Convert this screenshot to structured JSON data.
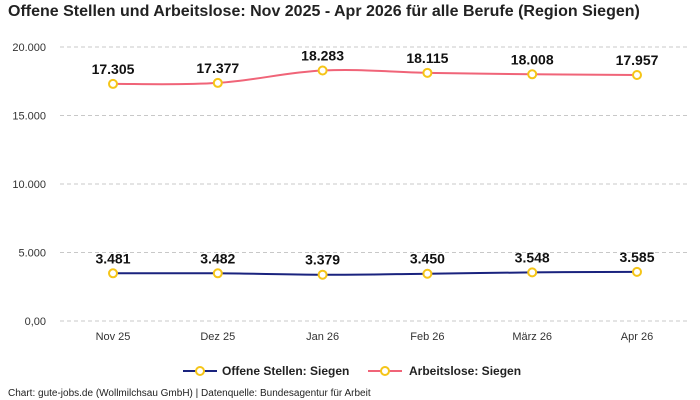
{
  "chart_data": {
    "type": "line",
    "title": "Offene Stellen und Arbeitslose: Nov 2025 - Apr 2026 für alle Berufe (Region Siegen)",
    "categories": [
      "Nov 25",
      "Dez 25",
      "Jan 26",
      "Feb 26",
      "März 26",
      "Apr 26"
    ],
    "series": [
      {
        "name": "Offene Stellen: Siegen",
        "values": [
          3481,
          3482,
          3379,
          3450,
          3548,
          3585
        ],
        "labels": [
          "3.481",
          "3.482",
          "3.379",
          "3.450",
          "3.548",
          "3.585"
        ],
        "color": "#1a237e"
      },
      {
        "name": "Arbeitslose: Siegen",
        "values": [
          17305,
          17377,
          18283,
          18115,
          18008,
          17957
        ],
        "labels": [
          "17.305",
          "17.377",
          "18.283",
          "18.115",
          "18.008",
          "17.957"
        ],
        "color": "#f06478"
      }
    ],
    "ylim": [
      0,
      20000
    ],
    "y_ticks": [
      0,
      5000,
      10000,
      15000,
      20000
    ],
    "y_tick_labels": [
      "0,00",
      "5.000",
      "10.000",
      "15.000",
      "20.000"
    ],
    "xlabel": "",
    "ylabel": "",
    "grid": true,
    "legend_position": "bottom-center",
    "marker_fill": "#ffffff",
    "marker_stroke": "#f5c518"
  },
  "source": "Chart: gute-jobs.de (Wollmilchsau GmbH) | Datenquelle: Bundesagentur für Arbeit"
}
